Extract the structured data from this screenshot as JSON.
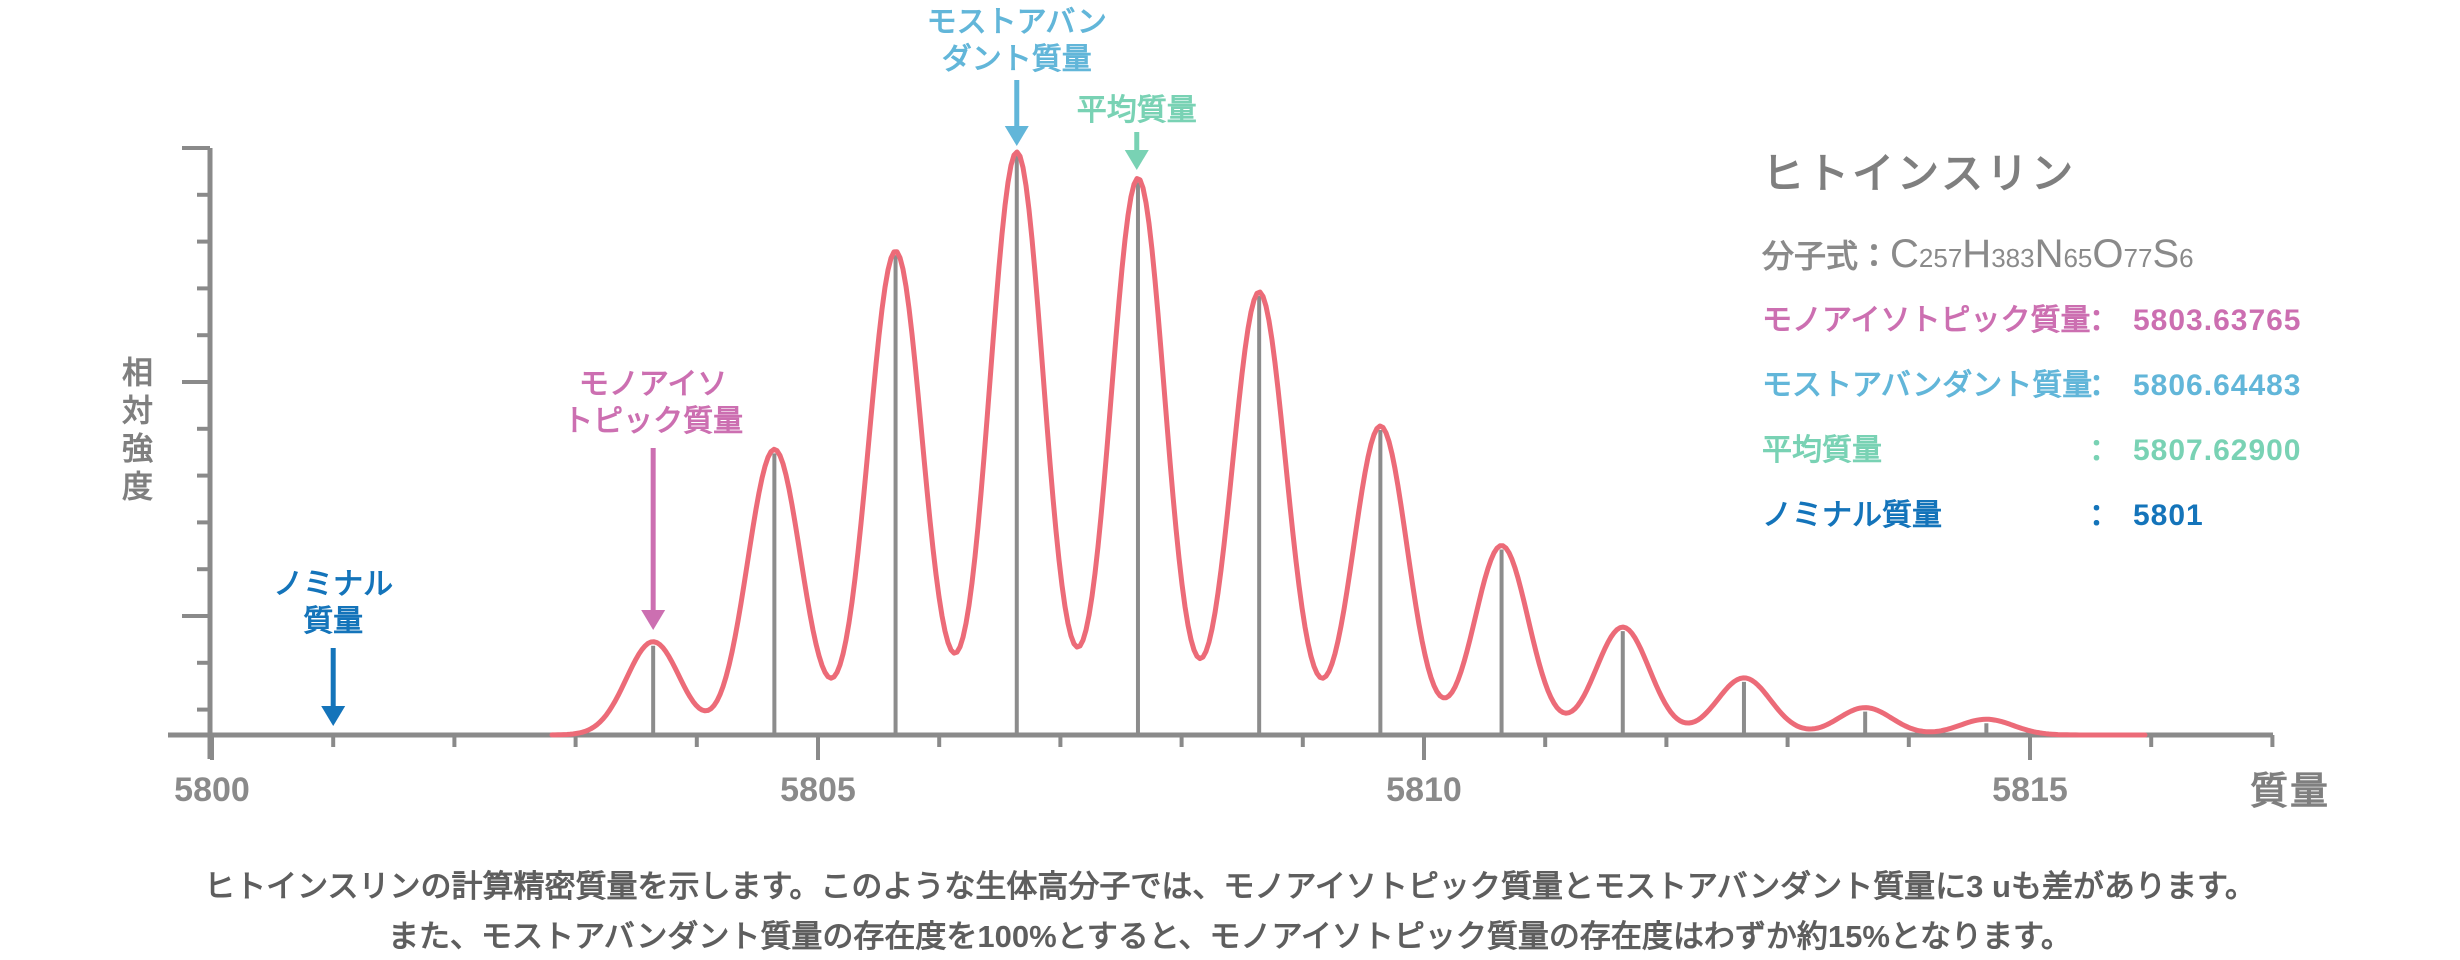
{
  "colors": {
    "curve": "#EC6B78",
    "axis": "#8A8A8A",
    "drop_line": "#8C8C8C",
    "heading_gray": "#7F7F7F",
    "caption_gray": "#5E5E5E",
    "pink": "#CC6FB1",
    "light_blue": "#62B6D9",
    "teal": "#79D2B4",
    "blue": "#1474BA"
  },
  "chart_data": {
    "type": "line",
    "xlabel": "質量",
    "ylabel": "相対強度",
    "x_range_shown": [
      5800,
      5817
    ],
    "x_major_ticks": [
      5800,
      5805,
      5810,
      5815
    ],
    "x_major_tick_labels": [
      "5800",
      "5805",
      "5810",
      "5815"
    ],
    "x_minor_tick_interval": 1,
    "y_numeric_labels": false,
    "grid": false,
    "peak_shape": "gaussian",
    "peak_fwhm_u": 0.52,
    "isotope_peaks": [
      {
        "mass": 5803.64,
        "rel_intensity": 0.16
      },
      {
        "mass": 5804.64,
        "rel_intensity": 0.49
      },
      {
        "mass": 5805.64,
        "rel_intensity": 0.83
      },
      {
        "mass": 5806.64,
        "rel_intensity": 1.0
      },
      {
        "mass": 5807.64,
        "rel_intensity": 0.955
      },
      {
        "mass": 5808.64,
        "rel_intensity": 0.76
      },
      {
        "mass": 5809.64,
        "rel_intensity": 0.53
      },
      {
        "mass": 5810.64,
        "rel_intensity": 0.325
      },
      {
        "mass": 5811.64,
        "rel_intensity": 0.185
      },
      {
        "mass": 5812.64,
        "rel_intensity": 0.098
      },
      {
        "mass": 5813.64,
        "rel_intensity": 0.047
      },
      {
        "mass": 5814.64,
        "rel_intensity": 0.027
      }
    ],
    "annotations": [
      {
        "id": "nominal",
        "label_lines": [
          "ノミナル",
          "質量"
        ],
        "mass": 5801.0,
        "color": "#1474BA"
      },
      {
        "id": "monoisotopic",
        "label_lines": [
          "モノアイソ",
          "トピック質量"
        ],
        "mass": 5803.64,
        "color": "#CC6FB1"
      },
      {
        "id": "most_abundant",
        "label_lines": [
          "モストアバン",
          "ダント質量"
        ],
        "mass": 5806.64,
        "color": "#62B6D9"
      },
      {
        "id": "average",
        "label_lines": [
          "平均質量"
        ],
        "mass": 5807.63,
        "color": "#79D2B4"
      }
    ]
  },
  "legend": {
    "title": "ヒトインスリン",
    "formula": {
      "prefix": "分子式：",
      "elements": [
        {
          "symbol": "C",
          "count": "257"
        },
        {
          "symbol": "H",
          "count": "383"
        },
        {
          "symbol": "N",
          "count": "65"
        },
        {
          "symbol": "O",
          "count": "77"
        },
        {
          "symbol": "S",
          "count": "6"
        }
      ]
    },
    "colon": "：",
    "rows": [
      {
        "id": "monoisotopic_mass",
        "label": "モノアイソトピック質量",
        "value": "5803.63765",
        "color": "#CC6FB1"
      },
      {
        "id": "most_abundant_mass",
        "label": "モストアバンダント質量",
        "value": "5806.64483",
        "color": "#62B6D9"
      },
      {
        "id": "average_mass",
        "label": "平均質量",
        "value": "5807.62900",
        "color": "#79D2B4"
      },
      {
        "id": "nominal_mass",
        "label": "ノミナル質量",
        "value": "5801",
        "color": "#1474BA"
      }
    ]
  },
  "caption": {
    "line1": "ヒトインスリンの計算精密質量を示します。このような生体高分子では、モノアイソトピック質量とモストアバンダント質量に3 uも差があります。",
    "line2": "また、モストアバンダント質量の存在度を100%とすると、モノアイソトピック質量の存在度はわずか約15%となります。"
  }
}
